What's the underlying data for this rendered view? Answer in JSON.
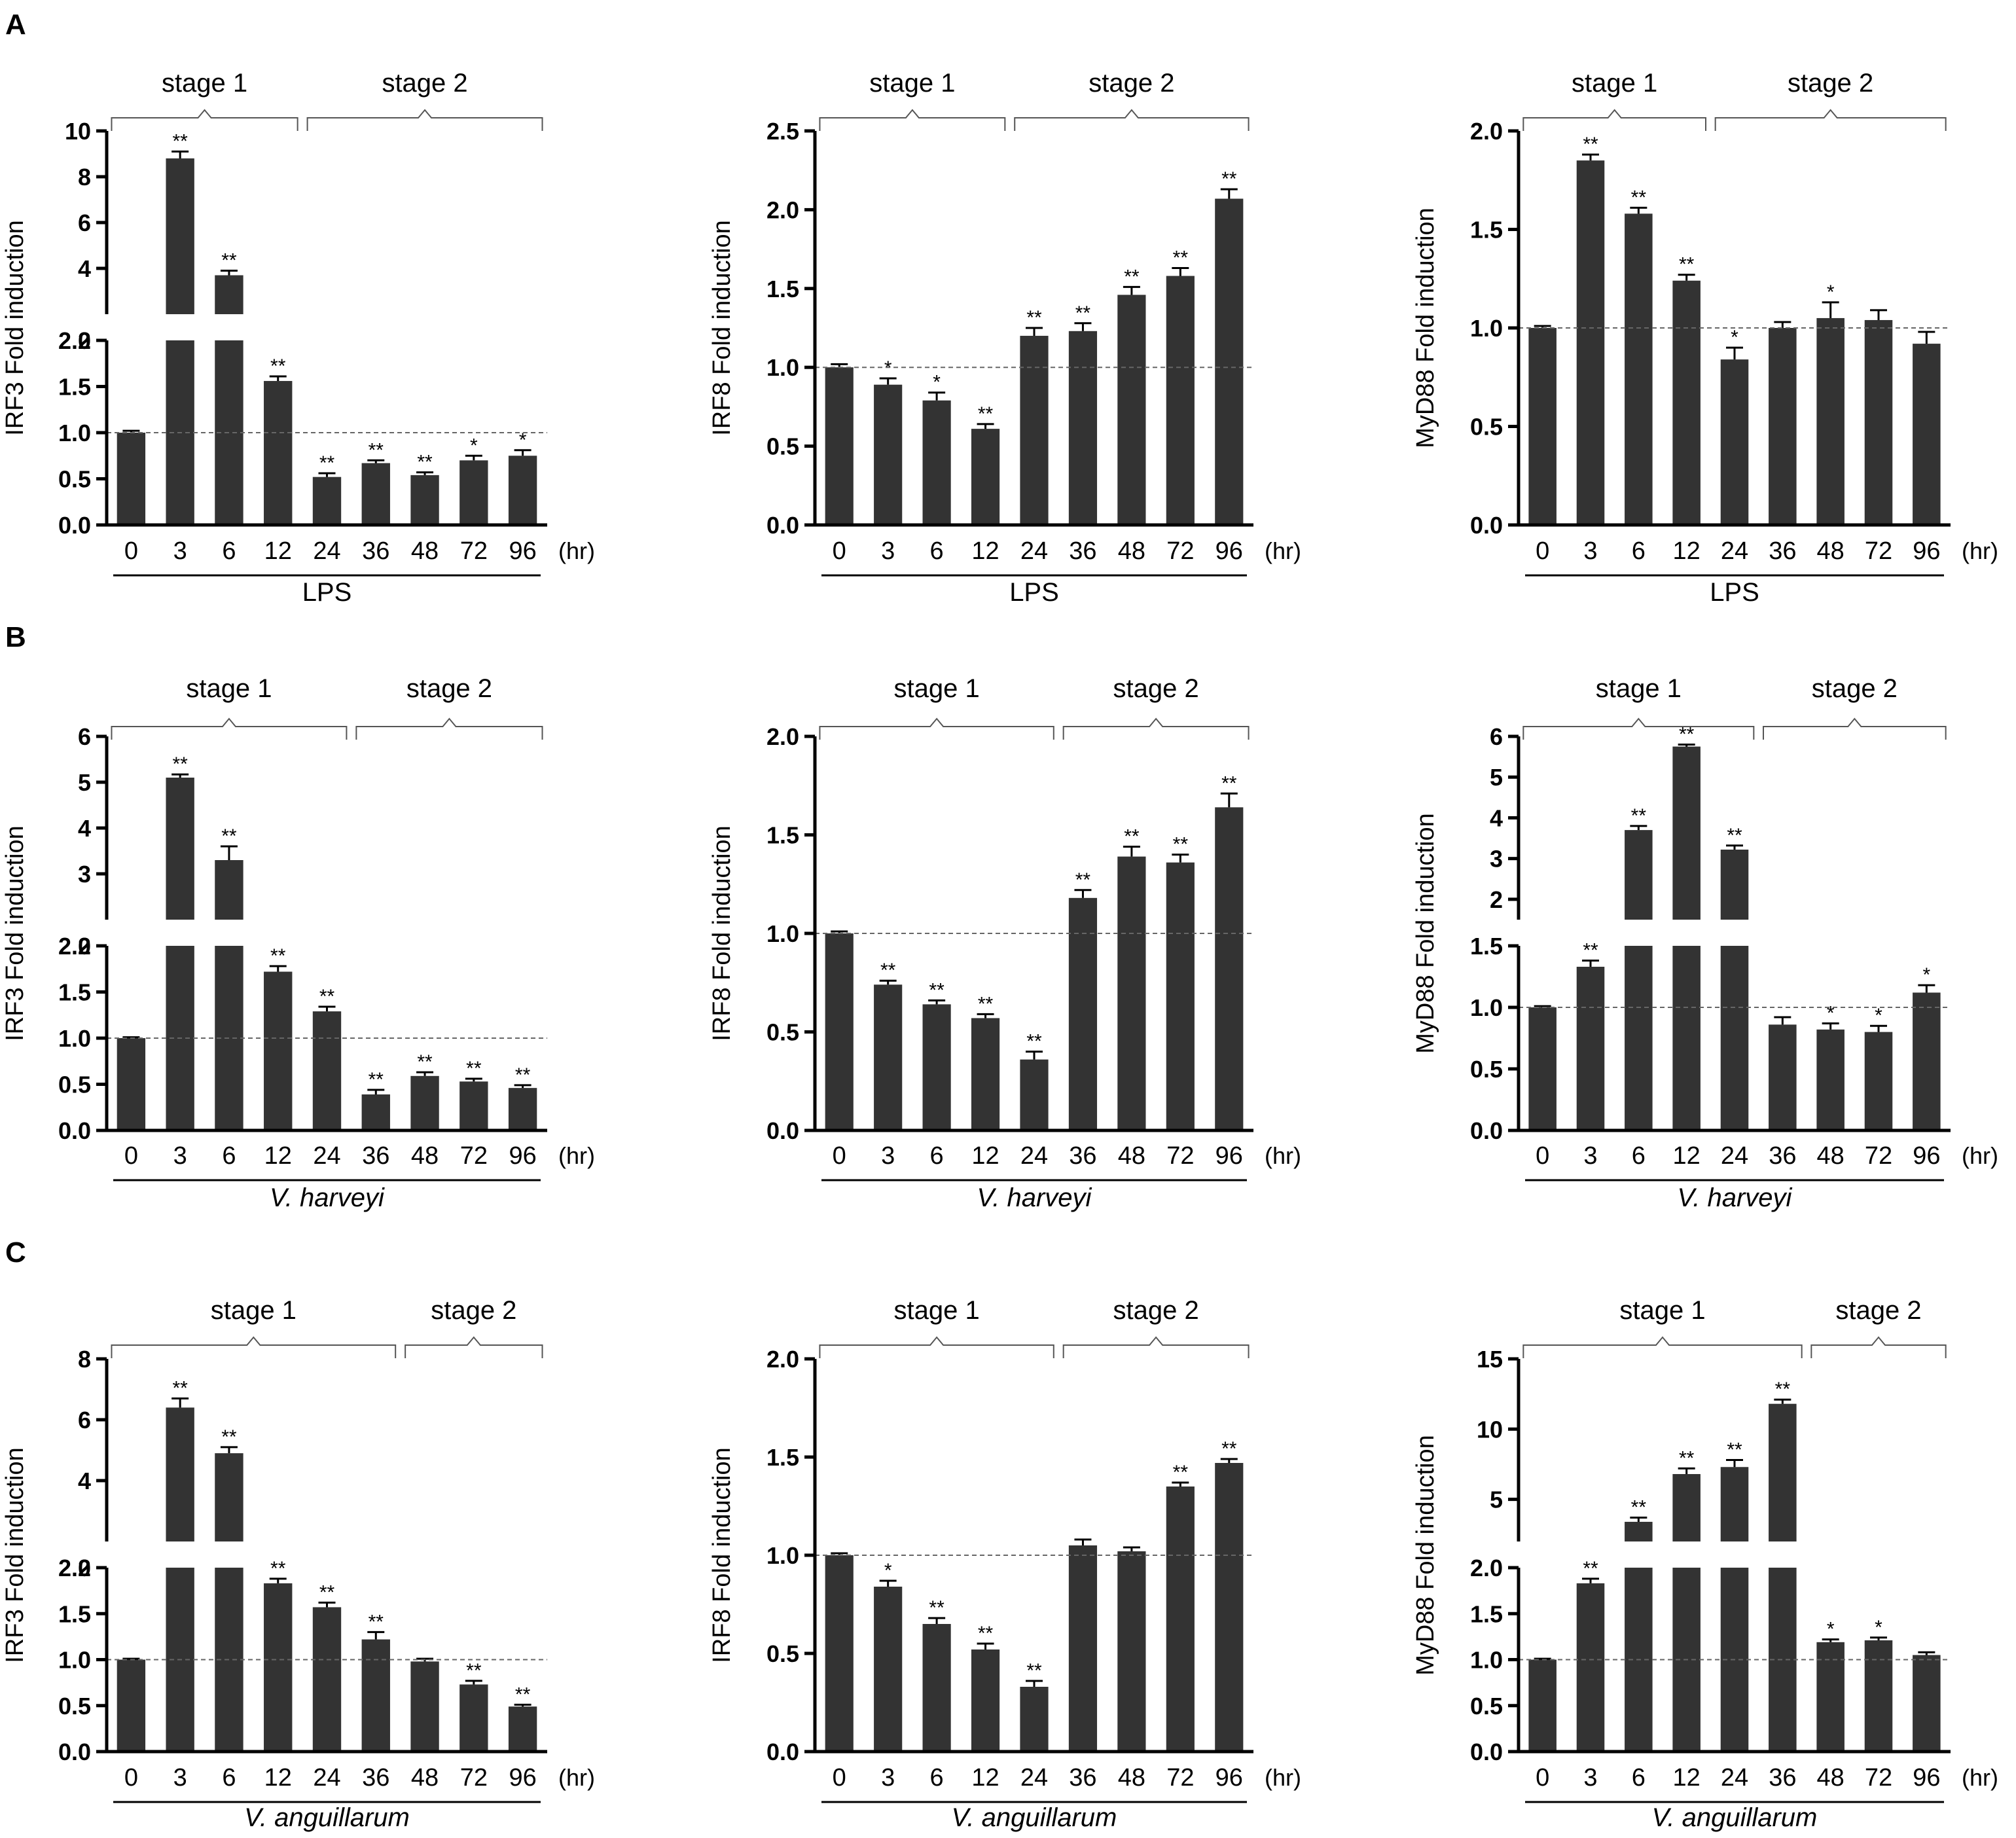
{
  "chart_data": [
    {
      "panel_letter": "A",
      "type": "bar",
      "gene": "IRF3",
      "ylabel": "IRF3 Fold induction",
      "treatment": "LPS",
      "treatment_italic": false,
      "categories": [
        "0",
        "3",
        "6",
        "12",
        "24",
        "36",
        "48",
        "72",
        "96"
      ],
      "unit_label": "(hr)",
      "stage1_label": "stage 1",
      "stage2_label": "stage 2",
      "stage1_span": [
        0,
        3
      ],
      "stage2_span": [
        4,
        8
      ],
      "values": [
        1.0,
        8.8,
        3.7,
        1.56,
        0.52,
        0.67,
        0.54,
        0.7,
        0.75
      ],
      "errors": [
        0.02,
        0.3,
        0.2,
        0.05,
        0.04,
        0.03,
        0.03,
        0.05,
        0.06
      ],
      "significance": [
        "",
        "**",
        "**",
        "**",
        "**",
        "**",
        "**",
        "*",
        "*"
      ],
      "baseline": 1.0,
      "axis_break": true,
      "lower_range": [
        0,
        2
      ],
      "lower_ticks": [
        "0.0",
        "0.5",
        "1.0",
        "1.5",
        "2.0"
      ],
      "upper_range": [
        2,
        10
      ],
      "upper_ticks": [
        "2",
        "4",
        "6",
        "8",
        "10"
      ]
    },
    {
      "panel_letter": "",
      "type": "bar",
      "gene": "IRF8",
      "ylabel": "IRF8 Fold induction",
      "treatment": "LPS",
      "treatment_italic": false,
      "categories": [
        "0",
        "3",
        "6",
        "12",
        "24",
        "36",
        "48",
        "72",
        "96"
      ],
      "unit_label": "(hr)",
      "stage1_label": "stage 1",
      "stage2_label": "stage 2",
      "stage1_span": [
        0,
        3
      ],
      "stage2_span": [
        4,
        8
      ],
      "values": [
        1.0,
        0.89,
        0.79,
        0.61,
        1.2,
        1.23,
        1.46,
        1.58,
        2.07
      ],
      "errors": [
        0.02,
        0.04,
        0.05,
        0.03,
        0.05,
        0.05,
        0.05,
        0.05,
        0.06
      ],
      "significance": [
        "",
        "*",
        "*",
        "**",
        "**",
        "**",
        "**",
        "**",
        "**"
      ],
      "baseline": 1.0,
      "axis_break": false,
      "range": [
        0,
        2.5
      ],
      "ticks": [
        "0.0",
        "0.5",
        "1.0",
        "1.5",
        "2.0",
        "2.5"
      ]
    },
    {
      "panel_letter": "",
      "type": "bar",
      "gene": "MyD88",
      "ylabel": "MyD88 Fold induction",
      "treatment": "LPS",
      "treatment_italic": false,
      "categories": [
        "0",
        "3",
        "6",
        "12",
        "24",
        "36",
        "48",
        "72",
        "96"
      ],
      "unit_label": "(hr)",
      "stage1_label": "stage 1",
      "stage2_label": "stage 2",
      "stage1_span": [
        0,
        3
      ],
      "stage2_span": [
        4,
        8
      ],
      "values": [
        1.0,
        1.85,
        1.58,
        1.24,
        0.84,
        1.0,
        1.05,
        1.04,
        0.92
      ],
      "errors": [
        0.01,
        0.03,
        0.03,
        0.03,
        0.06,
        0.03,
        0.08,
        0.05,
        0.06
      ],
      "significance": [
        "",
        "**",
        "**",
        "**",
        "*",
        "",
        "*",
        "",
        ""
      ],
      "baseline": 1.0,
      "axis_break": false,
      "range": [
        0,
        2
      ],
      "ticks": [
        "0.0",
        "0.5",
        "1.0",
        "1.5",
        "2.0"
      ]
    },
    {
      "panel_letter": "B",
      "type": "bar",
      "gene": "IRF3",
      "ylabel": "IRF3 Fold induction",
      "treatment": "V. harveyi",
      "treatment_italic": true,
      "categories": [
        "0",
        "3",
        "6",
        "12",
        "24",
        "36",
        "48",
        "72",
        "96"
      ],
      "unit_label": "(hr)",
      "stage1_label": "stage 1",
      "stage2_label": "stage 2",
      "stage1_span": [
        0,
        4
      ],
      "stage2_span": [
        5,
        8
      ],
      "values": [
        1.0,
        5.1,
        3.3,
        1.72,
        1.29,
        0.39,
        0.59,
        0.53,
        0.46
      ],
      "errors": [
        0.01,
        0.07,
        0.3,
        0.06,
        0.05,
        0.05,
        0.04,
        0.03,
        0.03
      ],
      "significance": [
        "",
        "**",
        "**",
        "**",
        "**",
        "**",
        "**",
        "**",
        "**"
      ],
      "baseline": 1.0,
      "axis_break": true,
      "lower_range": [
        0,
        2
      ],
      "lower_ticks": [
        "0.0",
        "0.5",
        "1.0",
        "1.5",
        "2.0"
      ],
      "upper_range": [
        2,
        6
      ],
      "upper_ticks": [
        "2",
        "3",
        "4",
        "5",
        "6"
      ]
    },
    {
      "panel_letter": "",
      "type": "bar",
      "gene": "IRF8",
      "ylabel": "IRF8 Fold induction",
      "treatment": "V. harveyi",
      "treatment_italic": true,
      "categories": [
        "0",
        "3",
        "6",
        "12",
        "24",
        "36",
        "48",
        "72",
        "96"
      ],
      "unit_label": "(hr)",
      "stage1_label": "stage 1",
      "stage2_label": "stage 2",
      "stage1_span": [
        0,
        4
      ],
      "stage2_span": [
        5,
        8
      ],
      "values": [
        1.0,
        0.74,
        0.64,
        0.57,
        0.36,
        1.18,
        1.39,
        1.36,
        1.64
      ],
      "errors": [
        0.01,
        0.02,
        0.02,
        0.02,
        0.04,
        0.04,
        0.05,
        0.04,
        0.07
      ],
      "significance": [
        "",
        "**",
        "**",
        "**",
        "**",
        "**",
        "**",
        "**",
        "**"
      ],
      "baseline": 1.0,
      "axis_break": false,
      "range": [
        0,
        2
      ],
      "ticks": [
        "0.0",
        "0.5",
        "1.0",
        "1.5",
        "2.0"
      ]
    },
    {
      "panel_letter": "",
      "type": "bar",
      "gene": "MyD88",
      "ylabel": "MyD88 Fold induction",
      "treatment": "V. harveyi",
      "treatment_italic": true,
      "categories": [
        "0",
        "3",
        "6",
        "12",
        "24",
        "36",
        "48",
        "72",
        "96"
      ],
      "unit_label": "(hr)",
      "stage1_label": "stage 1",
      "stage2_label": "stage 2",
      "stage1_span": [
        0,
        4
      ],
      "stage2_span": [
        5,
        8
      ],
      "values": [
        1.0,
        1.33,
        3.7,
        5.75,
        3.22,
        0.86,
        0.82,
        0.8,
        1.12
      ],
      "errors": [
        0.01,
        0.05,
        0.1,
        0.05,
        0.1,
        0.06,
        0.05,
        0.05,
        0.06
      ],
      "significance": [
        "",
        "**",
        "**",
        "**",
        "**",
        "",
        "*",
        "*",
        "*"
      ],
      "baseline": 1.0,
      "axis_break": true,
      "lower_range": [
        0,
        1.5
      ],
      "lower_ticks": [
        "0.0",
        "0.5",
        "1.0",
        "1.5"
      ],
      "upper_range": [
        1.5,
        6
      ],
      "upper_ticks": [
        "2",
        "3",
        "4",
        "5",
        "6"
      ]
    },
    {
      "panel_letter": "C",
      "type": "bar",
      "gene": "IRF3",
      "ylabel": "IRF3 Fold induction",
      "treatment": "V.  anguillarum",
      "treatment_italic": true,
      "categories": [
        "0",
        "3",
        "6",
        "12",
        "24",
        "36",
        "48",
        "72",
        "96"
      ],
      "unit_label": "(hr)",
      "stage1_label": "stage 1",
      "stage2_label": "stage 2",
      "stage1_span": [
        0,
        5
      ],
      "stage2_span": [
        6,
        8
      ],
      "values": [
        1.0,
        6.4,
        4.9,
        1.83,
        1.57,
        1.22,
        0.98,
        0.73,
        0.49
      ],
      "errors": [
        0.01,
        0.3,
        0.2,
        0.05,
        0.05,
        0.08,
        0.03,
        0.04,
        0.02
      ],
      "significance": [
        "",
        "**",
        "**",
        "**",
        "**",
        "**",
        "",
        "**",
        "**"
      ],
      "baseline": 1.0,
      "axis_break": true,
      "lower_range": [
        0,
        2
      ],
      "lower_ticks": [
        "0.0",
        "0.5",
        "1.0",
        "1.5",
        "2.0"
      ],
      "upper_range": [
        2,
        8
      ],
      "upper_ticks": [
        "2",
        "4",
        "6",
        "8"
      ]
    },
    {
      "panel_letter": "",
      "type": "bar",
      "gene": "IRF8",
      "ylabel": "IRF8 Fold induction",
      "treatment": "V.  anguillarum",
      "treatment_italic": true,
      "categories": [
        "0",
        "3",
        "6",
        "12",
        "24",
        "36",
        "48",
        "72",
        "96"
      ],
      "unit_label": "(hr)",
      "stage1_label": "stage 1",
      "stage2_label": "stage 2",
      "stage1_span": [
        0,
        4
      ],
      "stage2_span": [
        5,
        8
      ],
      "values": [
        1.0,
        0.84,
        0.65,
        0.52,
        0.33,
        1.05,
        1.02,
        1.35,
        1.47
      ],
      "errors": [
        0.01,
        0.03,
        0.03,
        0.03,
        0.03,
        0.03,
        0.02,
        0.02,
        0.02
      ],
      "significance": [
        "",
        "*",
        "**",
        "**",
        "**",
        "",
        "",
        "**",
        "**"
      ],
      "baseline": 1.0,
      "axis_break": false,
      "range": [
        0,
        2
      ],
      "ticks": [
        "0.0",
        "0.5",
        "1.0",
        "1.5",
        "2.0"
      ]
    },
    {
      "panel_letter": "",
      "type": "bar",
      "gene": "MyD88",
      "ylabel": "MyD88 Fold induction",
      "treatment": "V.  anguillarum",
      "treatment_italic": true,
      "categories": [
        "0",
        "3",
        "6",
        "12",
        "24",
        "36",
        "48",
        "72",
        "96"
      ],
      "unit_label": "(hr)",
      "stage1_label": "stage 1",
      "stage2_label": "stage 2",
      "stage1_span": [
        0,
        5
      ],
      "stage2_span": [
        6,
        8
      ],
      "values": [
        1.0,
        1.83,
        3.4,
        6.8,
        7.3,
        11.8,
        1.19,
        1.21,
        1.05
      ],
      "errors": [
        0.01,
        0.05,
        0.3,
        0.4,
        0.5,
        0.3,
        0.03,
        0.03,
        0.03
      ],
      "significance": [
        "",
        "**",
        "**",
        "**",
        "**",
        "**",
        "*",
        "*",
        ""
      ],
      "baseline": 1.0,
      "axis_break": true,
      "lower_range": [
        0,
        2
      ],
      "lower_ticks": [
        "0.0",
        "0.5",
        "1.0",
        "1.5",
        "2.0"
      ],
      "upper_range": [
        2,
        15
      ],
      "upper_ticks": [
        "5",
        "10",
        "15"
      ]
    }
  ]
}
